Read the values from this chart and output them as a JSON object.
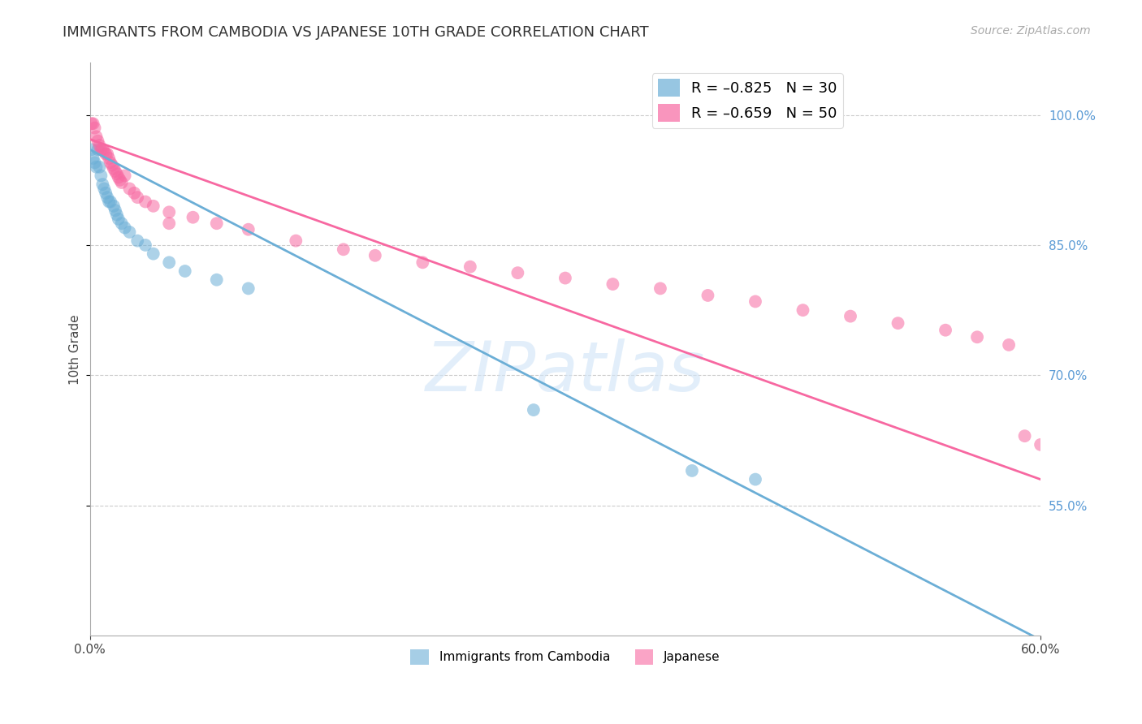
{
  "title": "IMMIGRANTS FROM CAMBODIA VS JAPANESE 10TH GRADE CORRELATION CHART",
  "source": "Source: ZipAtlas.com",
  "ylabel": "10th Grade",
  "watermark": "ZIPatlas",
  "xlim": [
    0.0,
    0.6
  ],
  "ylim": [
    0.4,
    1.06
  ],
  "xticks": [
    0.0,
    0.6
  ],
  "ytick_values": [
    0.55,
    0.7,
    0.85,
    1.0
  ],
  "right_ytick_color": "#5b9bd5",
  "legend_entries": [
    {
      "label": "R = –0.825   N = 30",
      "color": "#6baed6"
    },
    {
      "label": "R = –0.659   N = 50",
      "color": "#f768a1"
    }
  ],
  "bottom_legend": [
    {
      "label": "Immigrants from Cambodia",
      "color": "#6baed6"
    },
    {
      "label": "Japanese",
      "color": "#f768a1"
    }
  ],
  "cambodia_scatter": [
    [
      0.001,
      0.96
    ],
    [
      0.002,
      0.95
    ],
    [
      0.003,
      0.945
    ],
    [
      0.004,
      0.94
    ],
    [
      0.005,
      0.96
    ],
    [
      0.006,
      0.94
    ],
    [
      0.007,
      0.93
    ],
    [
      0.008,
      0.92
    ],
    [
      0.009,
      0.915
    ],
    [
      0.01,
      0.91
    ],
    [
      0.011,
      0.905
    ],
    [
      0.012,
      0.9
    ],
    [
      0.013,
      0.9
    ],
    [
      0.015,
      0.895
    ],
    [
      0.016,
      0.89
    ],
    [
      0.017,
      0.885
    ],
    [
      0.018,
      0.88
    ],
    [
      0.02,
      0.875
    ],
    [
      0.022,
      0.87
    ],
    [
      0.025,
      0.865
    ],
    [
      0.03,
      0.855
    ],
    [
      0.035,
      0.85
    ],
    [
      0.04,
      0.84
    ],
    [
      0.05,
      0.83
    ],
    [
      0.06,
      0.82
    ],
    [
      0.08,
      0.81
    ],
    [
      0.1,
      0.8
    ],
    [
      0.28,
      0.66
    ],
    [
      0.38,
      0.59
    ],
    [
      0.42,
      0.58
    ]
  ],
  "japanese_scatter": [
    [
      0.001,
      0.99
    ],
    [
      0.002,
      0.99
    ],
    [
      0.003,
      0.985
    ],
    [
      0.004,
      0.975
    ],
    [
      0.005,
      0.97
    ],
    [
      0.006,
      0.965
    ],
    [
      0.007,
      0.96
    ],
    [
      0.008,
      0.96
    ],
    [
      0.009,
      0.958
    ],
    [
      0.01,
      0.955
    ],
    [
      0.011,
      0.955
    ],
    [
      0.012,
      0.95
    ],
    [
      0.013,
      0.945
    ],
    [
      0.014,
      0.942
    ],
    [
      0.015,
      0.938
    ],
    [
      0.016,
      0.935
    ],
    [
      0.017,
      0.932
    ],
    [
      0.018,
      0.928
    ],
    [
      0.019,
      0.925
    ],
    [
      0.02,
      0.922
    ],
    [
      0.022,
      0.93
    ],
    [
      0.025,
      0.915
    ],
    [
      0.028,
      0.91
    ],
    [
      0.03,
      0.905
    ],
    [
      0.035,
      0.9
    ],
    [
      0.04,
      0.895
    ],
    [
      0.05,
      0.888
    ],
    [
      0.065,
      0.882
    ],
    [
      0.08,
      0.875
    ],
    [
      0.1,
      0.868
    ],
    [
      0.13,
      0.855
    ],
    [
      0.16,
      0.845
    ],
    [
      0.18,
      0.838
    ],
    [
      0.21,
      0.83
    ],
    [
      0.24,
      0.825
    ],
    [
      0.27,
      0.818
    ],
    [
      0.3,
      0.812
    ],
    [
      0.33,
      0.805
    ],
    [
      0.36,
      0.8
    ],
    [
      0.39,
      0.792
    ],
    [
      0.42,
      0.785
    ],
    [
      0.45,
      0.775
    ],
    [
      0.48,
      0.768
    ],
    [
      0.51,
      0.76
    ],
    [
      0.54,
      0.752
    ],
    [
      0.56,
      0.744
    ],
    [
      0.58,
      0.735
    ],
    [
      0.59,
      0.63
    ],
    [
      0.6,
      0.62
    ],
    [
      0.05,
      0.875
    ]
  ],
  "cambodia_color": "#6baed6",
  "japanese_color": "#f768a1",
  "cambodia_line": {
    "x0": 0.0,
    "y0": 0.96,
    "x1": 0.6,
    "y1": 0.395
  },
  "japanese_line": {
    "x0": 0.0,
    "y0": 0.972,
    "x1": 0.6,
    "y1": 0.58
  },
  "scatter_alpha": 0.55,
  "scatter_size": 130,
  "line_width": 2.0,
  "grid_color": "#cccccc",
  "background_color": "#ffffff",
  "title_fontsize": 13,
  "axis_label_fontsize": 11,
  "tick_fontsize": 11,
  "source_fontsize": 10,
  "legend_fontsize": 13
}
